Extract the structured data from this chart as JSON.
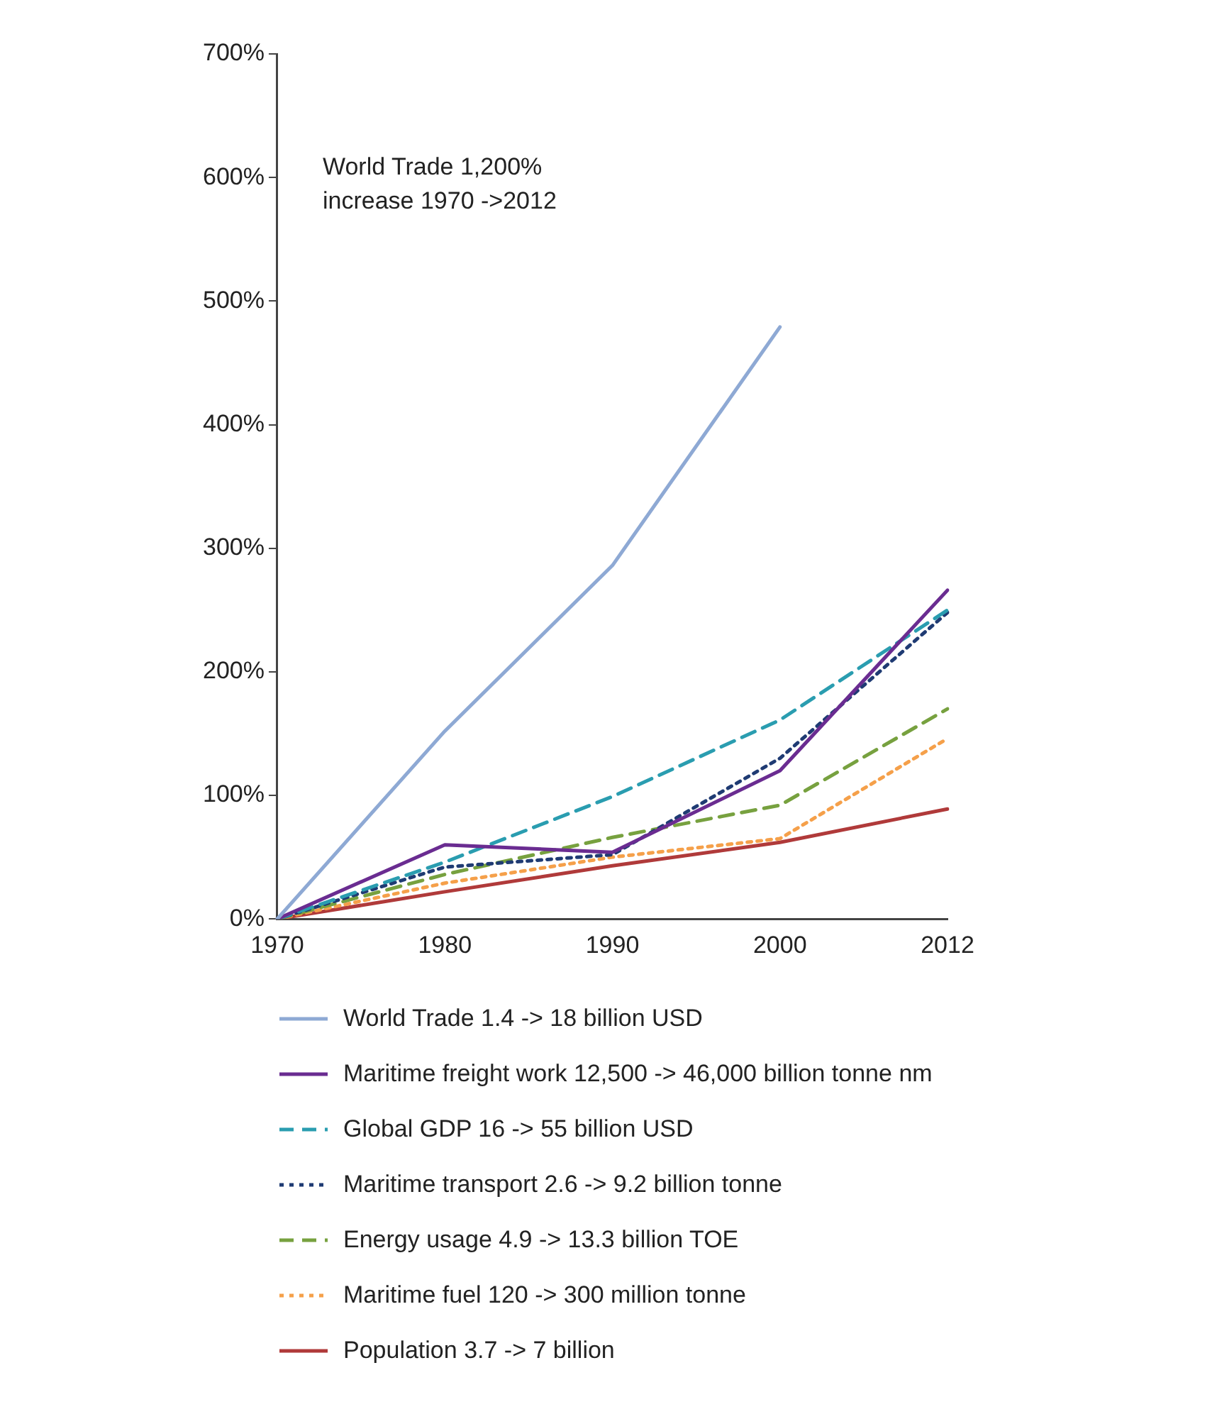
{
  "chart_data": {
    "type": "line",
    "categories": [
      "1970",
      "1980",
      "1990",
      "2000",
      "2012"
    ],
    "ylim": [
      0,
      700
    ],
    "yticks": [
      {
        "value": 0,
        "label": "0%"
      },
      {
        "value": 100,
        "label": "100%"
      },
      {
        "value": 200,
        "label": "200%"
      },
      {
        "value": 300,
        "label": "300%"
      },
      {
        "value": 400,
        "label": "400%"
      },
      {
        "value": 500,
        "label": "500%"
      },
      {
        "value": 600,
        "label": "600%"
      },
      {
        "value": 700,
        "label": "700%"
      }
    ],
    "grid": false,
    "legend": "bottom",
    "marker": "none",
    "annotations": [
      "World Trade 1,200% increase 1970 ->2012"
    ],
    "series": [
      {
        "name": "World Trade 1.4 -> 18 billion USD",
        "color": "#8ea9d4",
        "line_style": "solid",
        "values": [
          0,
          152,
          286,
          479,
          null
        ]
      },
      {
        "name": "Maritime freight work 12,500 -> 46,000 billion tonne nm",
        "color": "#6a2c91",
        "line_style": "solid",
        "values": [
          0,
          60,
          54,
          120,
          266
        ]
      },
      {
        "name": "Global GDP 16 -> 55 billion USD",
        "color": "#2a9db0",
        "line_style": "dashed",
        "values": [
          0,
          46,
          99,
          161,
          250
        ]
      },
      {
        "name": "Maritime transport 2.6 -> 9.2 billion tonne",
        "color": "#1f3b73",
        "line_style": "dotted",
        "values": [
          0,
          42,
          52,
          130,
          248
        ]
      },
      {
        "name": "Energy usage 4.9 -> 13.3 billion TOE",
        "color": "#77a13f",
        "line_style": "dashed",
        "values": [
          0,
          36,
          66,
          92,
          170
        ]
      },
      {
        "name": "Maritime fuel 120 -> 300 million tonne",
        "color": "#f5a04a",
        "line_style": "dotted",
        "values": [
          0,
          29,
          50,
          65,
          146
        ]
      },
      {
        "name": "Population  3.7 -> 7 billion",
        "color": "#b03a3a",
        "line_style": "solid",
        "values": [
          0,
          22,
          43,
          62,
          89
        ]
      }
    ]
  }
}
